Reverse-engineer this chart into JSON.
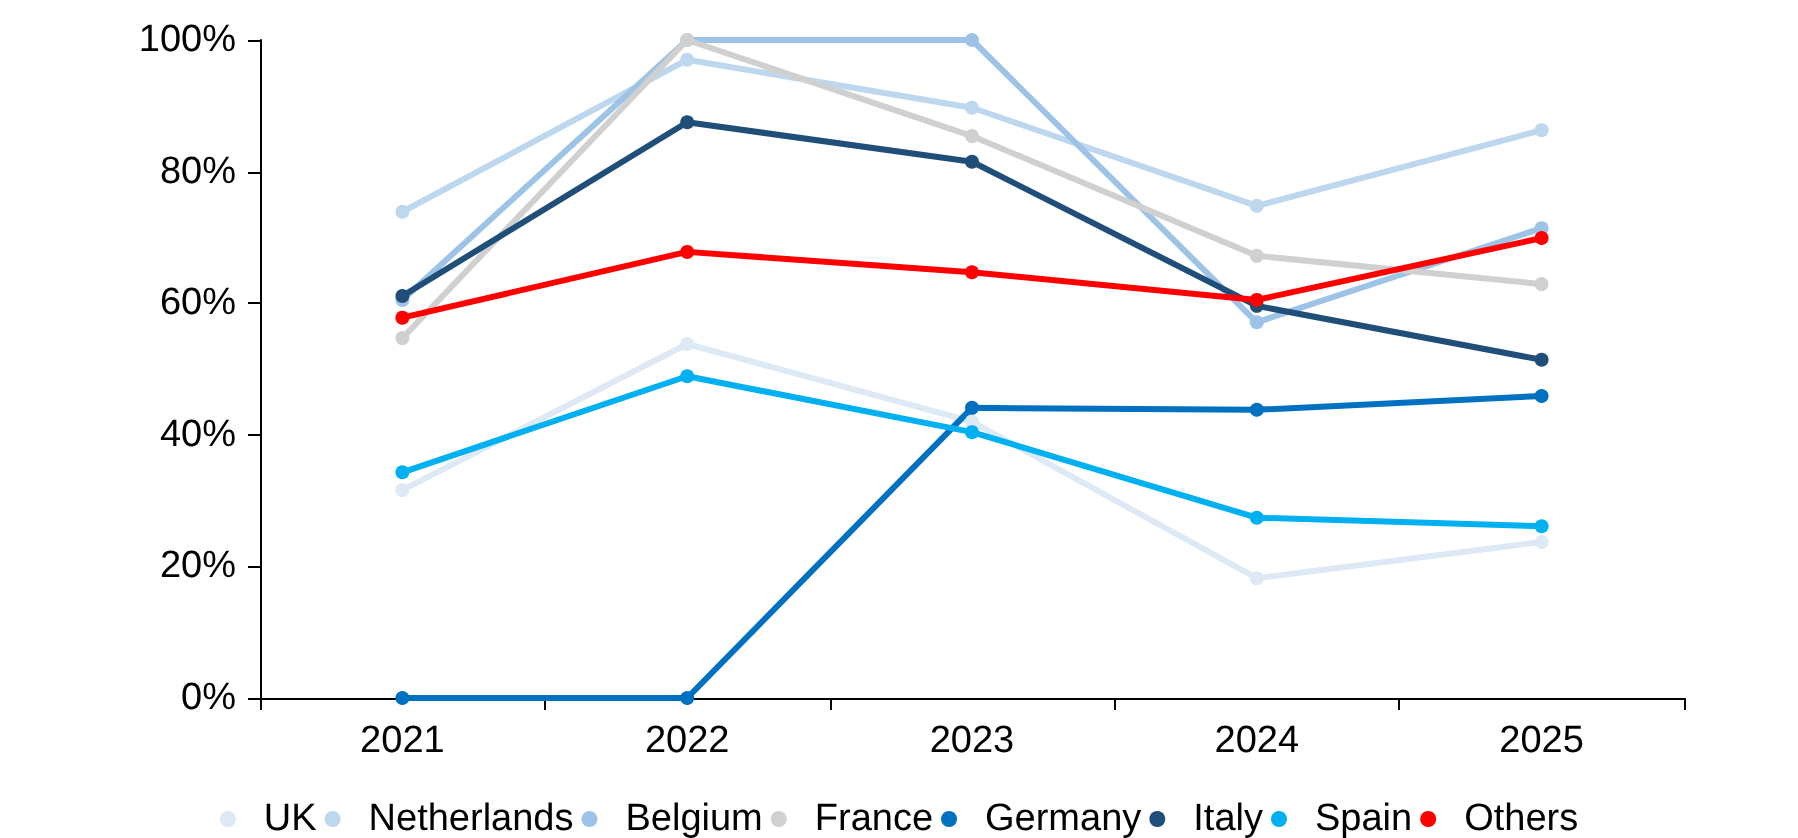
{
  "chart_data": {
    "type": "line",
    "categories": [
      "2021",
      "2022",
      "2023",
      "2024",
      "2025"
    ],
    "series": [
      {
        "name": "UK",
        "color": "#dde9f5",
        "values": [
          31.6,
          53.8,
          42,
          18.2,
          23.7
        ]
      },
      {
        "name": "Netherlands",
        "color": "#bdd7ee",
        "values": [
          73.9,
          97,
          89.7,
          74.8,
          86.3
        ]
      },
      {
        "name": "Belgium",
        "color": "#9dc3e6",
        "values": [
          60.5,
          100,
          100,
          57.1,
          71.4
        ]
      },
      {
        "name": "France",
        "color": "#d0d0d0",
        "values": [
          54.7,
          100,
          85.4,
          67.2,
          62.9
        ]
      },
      {
        "name": "Germany",
        "color": "#0070c0",
        "values": [
          0,
          0,
          44.1,
          43.8,
          45.9
        ]
      },
      {
        "name": "Italy",
        "color": "#1f4e79",
        "values": [
          61.1,
          87.5,
          81.5,
          59.6,
          51.4
        ]
      },
      {
        "name": "Spain",
        "color": "#00b0f0",
        "values": [
          34.3,
          48.9,
          40.4,
          27.4,
          26.1
        ]
      },
      {
        "name": "Others",
        "color": "#ff0000",
        "values": [
          57.8,
          67.8,
          64.7,
          60.5,
          69.9
        ]
      }
    ],
    "ylim": [
      0,
      100
    ],
    "yticks": [
      {
        "value": 0,
        "label": "0%"
      },
      {
        "value": 20,
        "label": "20%"
      },
      {
        "value": 40,
        "label": "40%"
      },
      {
        "value": 60,
        "label": "60%"
      },
      {
        "value": 80,
        "label": "80%"
      },
      {
        "value": 100,
        "label": "100%"
      }
    ],
    "grid": false,
    "legend": "bottom",
    "marker": "circle",
    "line_style": "solid"
  }
}
